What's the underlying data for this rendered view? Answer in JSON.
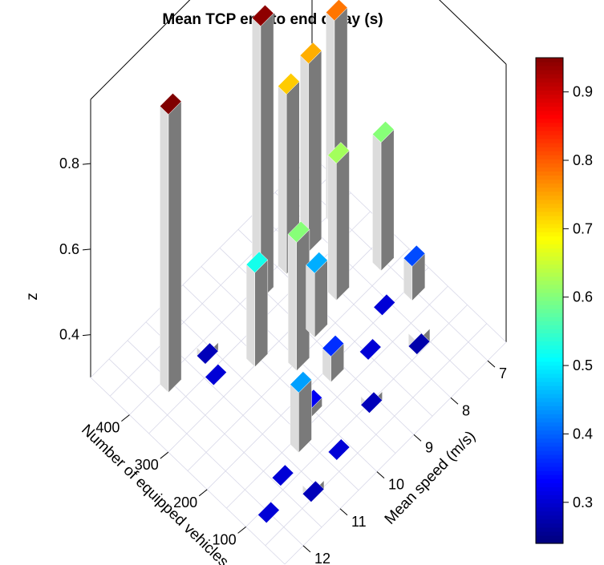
{
  "chart_data": {
    "type": "bar3d",
    "title": "Mean TCP end to end delay (s)",
    "x_axis": {
      "label": "Number of equipped vehicles",
      "ticks": [
        "100",
        "200",
        "300",
        "400"
      ]
    },
    "y_axis": {
      "label": "Mean speed (m/s)",
      "ticks": [
        "7",
        "8",
        "9",
        "10",
        "11",
        "12"
      ]
    },
    "z_axis": {
      "label": "z",
      "ticks": [
        "0.4",
        "0.6",
        "0.8"
      ],
      "range": [
        0.3,
        0.95
      ]
    },
    "colorbar": {
      "ticks": [
        "0.3",
        "0.4",
        "0.5",
        "0.6",
        "0.7",
        "0.8",
        "0.9"
      ],
      "range": [
        0.24,
        0.95
      ],
      "palette": "jet"
    },
    "bars": [
      {
        "n": 400,
        "speed": 7,
        "z": 0.78
      },
      {
        "n": 400,
        "speed": 7.7,
        "z": 0.74
      },
      {
        "n": 400,
        "speed": 8.3,
        "z": 0.72
      },
      {
        "n": 400,
        "speed": 9,
        "z": 0.94
      },
      {
        "n": 320,
        "speed": 10,
        "z": 0.52
      },
      {
        "n": 400,
        "speed": 10.5,
        "z": 0.28
      },
      {
        "n": 350,
        "speed": 10.8,
        "z": 0.3
      },
      {
        "n": 400,
        "speed": 11.5,
        "z": 0.95
      },
      {
        "n": 280,
        "speed": 7,
        "z": 0.6
      },
      {
        "n": 300,
        "speed": 8,
        "z": 0.62
      },
      {
        "n": 280,
        "speed": 8.8,
        "z": 0.45
      },
      {
        "n": 260,
        "speed": 9.5,
        "z": 0.6
      },
      {
        "n": 200,
        "speed": 7,
        "z": 0.38
      },
      {
        "n": 220,
        "speed": 7.6,
        "z": 0.3
      },
      {
        "n": 180,
        "speed": 8.4,
        "z": 0.3
      },
      {
        "n": 200,
        "speed": 9.2,
        "z": 0.36
      },
      {
        "n": 180,
        "speed": 10,
        "z": 0.32
      },
      {
        "n": 150,
        "speed": 10.6,
        "z": 0.44
      },
      {
        "n": 130,
        "speed": 11.3,
        "z": 0.3
      },
      {
        "n": 100,
        "speed": 12,
        "z": 0.3
      },
      {
        "n": 120,
        "speed": 9,
        "z": 0.28
      },
      {
        "n": 140,
        "speed": 7.5,
        "z": 0.27
      },
      {
        "n": 90,
        "speed": 10.2,
        "z": 0.3
      },
      {
        "n": 80,
        "speed": 11,
        "z": 0.28
      }
    ]
  }
}
